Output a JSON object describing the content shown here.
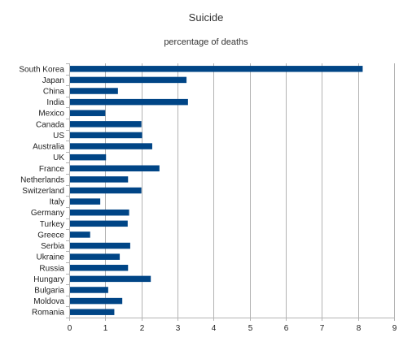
{
  "chart_data": {
    "type": "bar",
    "orientation": "horizontal",
    "title": "Suicide",
    "subtitle": "percentage of deaths",
    "xlabel": "",
    "ylabel": "",
    "xlim": [
      0,
      9
    ],
    "ticks": [
      0,
      1,
      2,
      3,
      4,
      5,
      6,
      7,
      8,
      9
    ],
    "grid": true,
    "legend": "none",
    "bar_color": "#004586",
    "categories": [
      "South Korea",
      "Japan",
      "China",
      "India",
      "Mexico",
      "Canada",
      "US",
      "Australia",
      "UK",
      "France",
      "Netherlands",
      "Switzerland",
      "Italy",
      "Germany",
      "Turkey",
      "Greece",
      "Serbia",
      "Ukraine",
      "Russia",
      "Hungary",
      "Bulgaria",
      "Moldova",
      "Romania"
    ],
    "values": [
      8.13,
      3.25,
      1.35,
      3.29,
      1.0,
      2.0,
      2.02,
      2.3,
      1.02,
      2.5,
      1.63,
      2.0,
      0.86,
      1.66,
      1.62,
      0.58,
      1.69,
      1.4,
      1.63,
      2.26,
      1.08,
      1.47,
      1.25
    ]
  }
}
